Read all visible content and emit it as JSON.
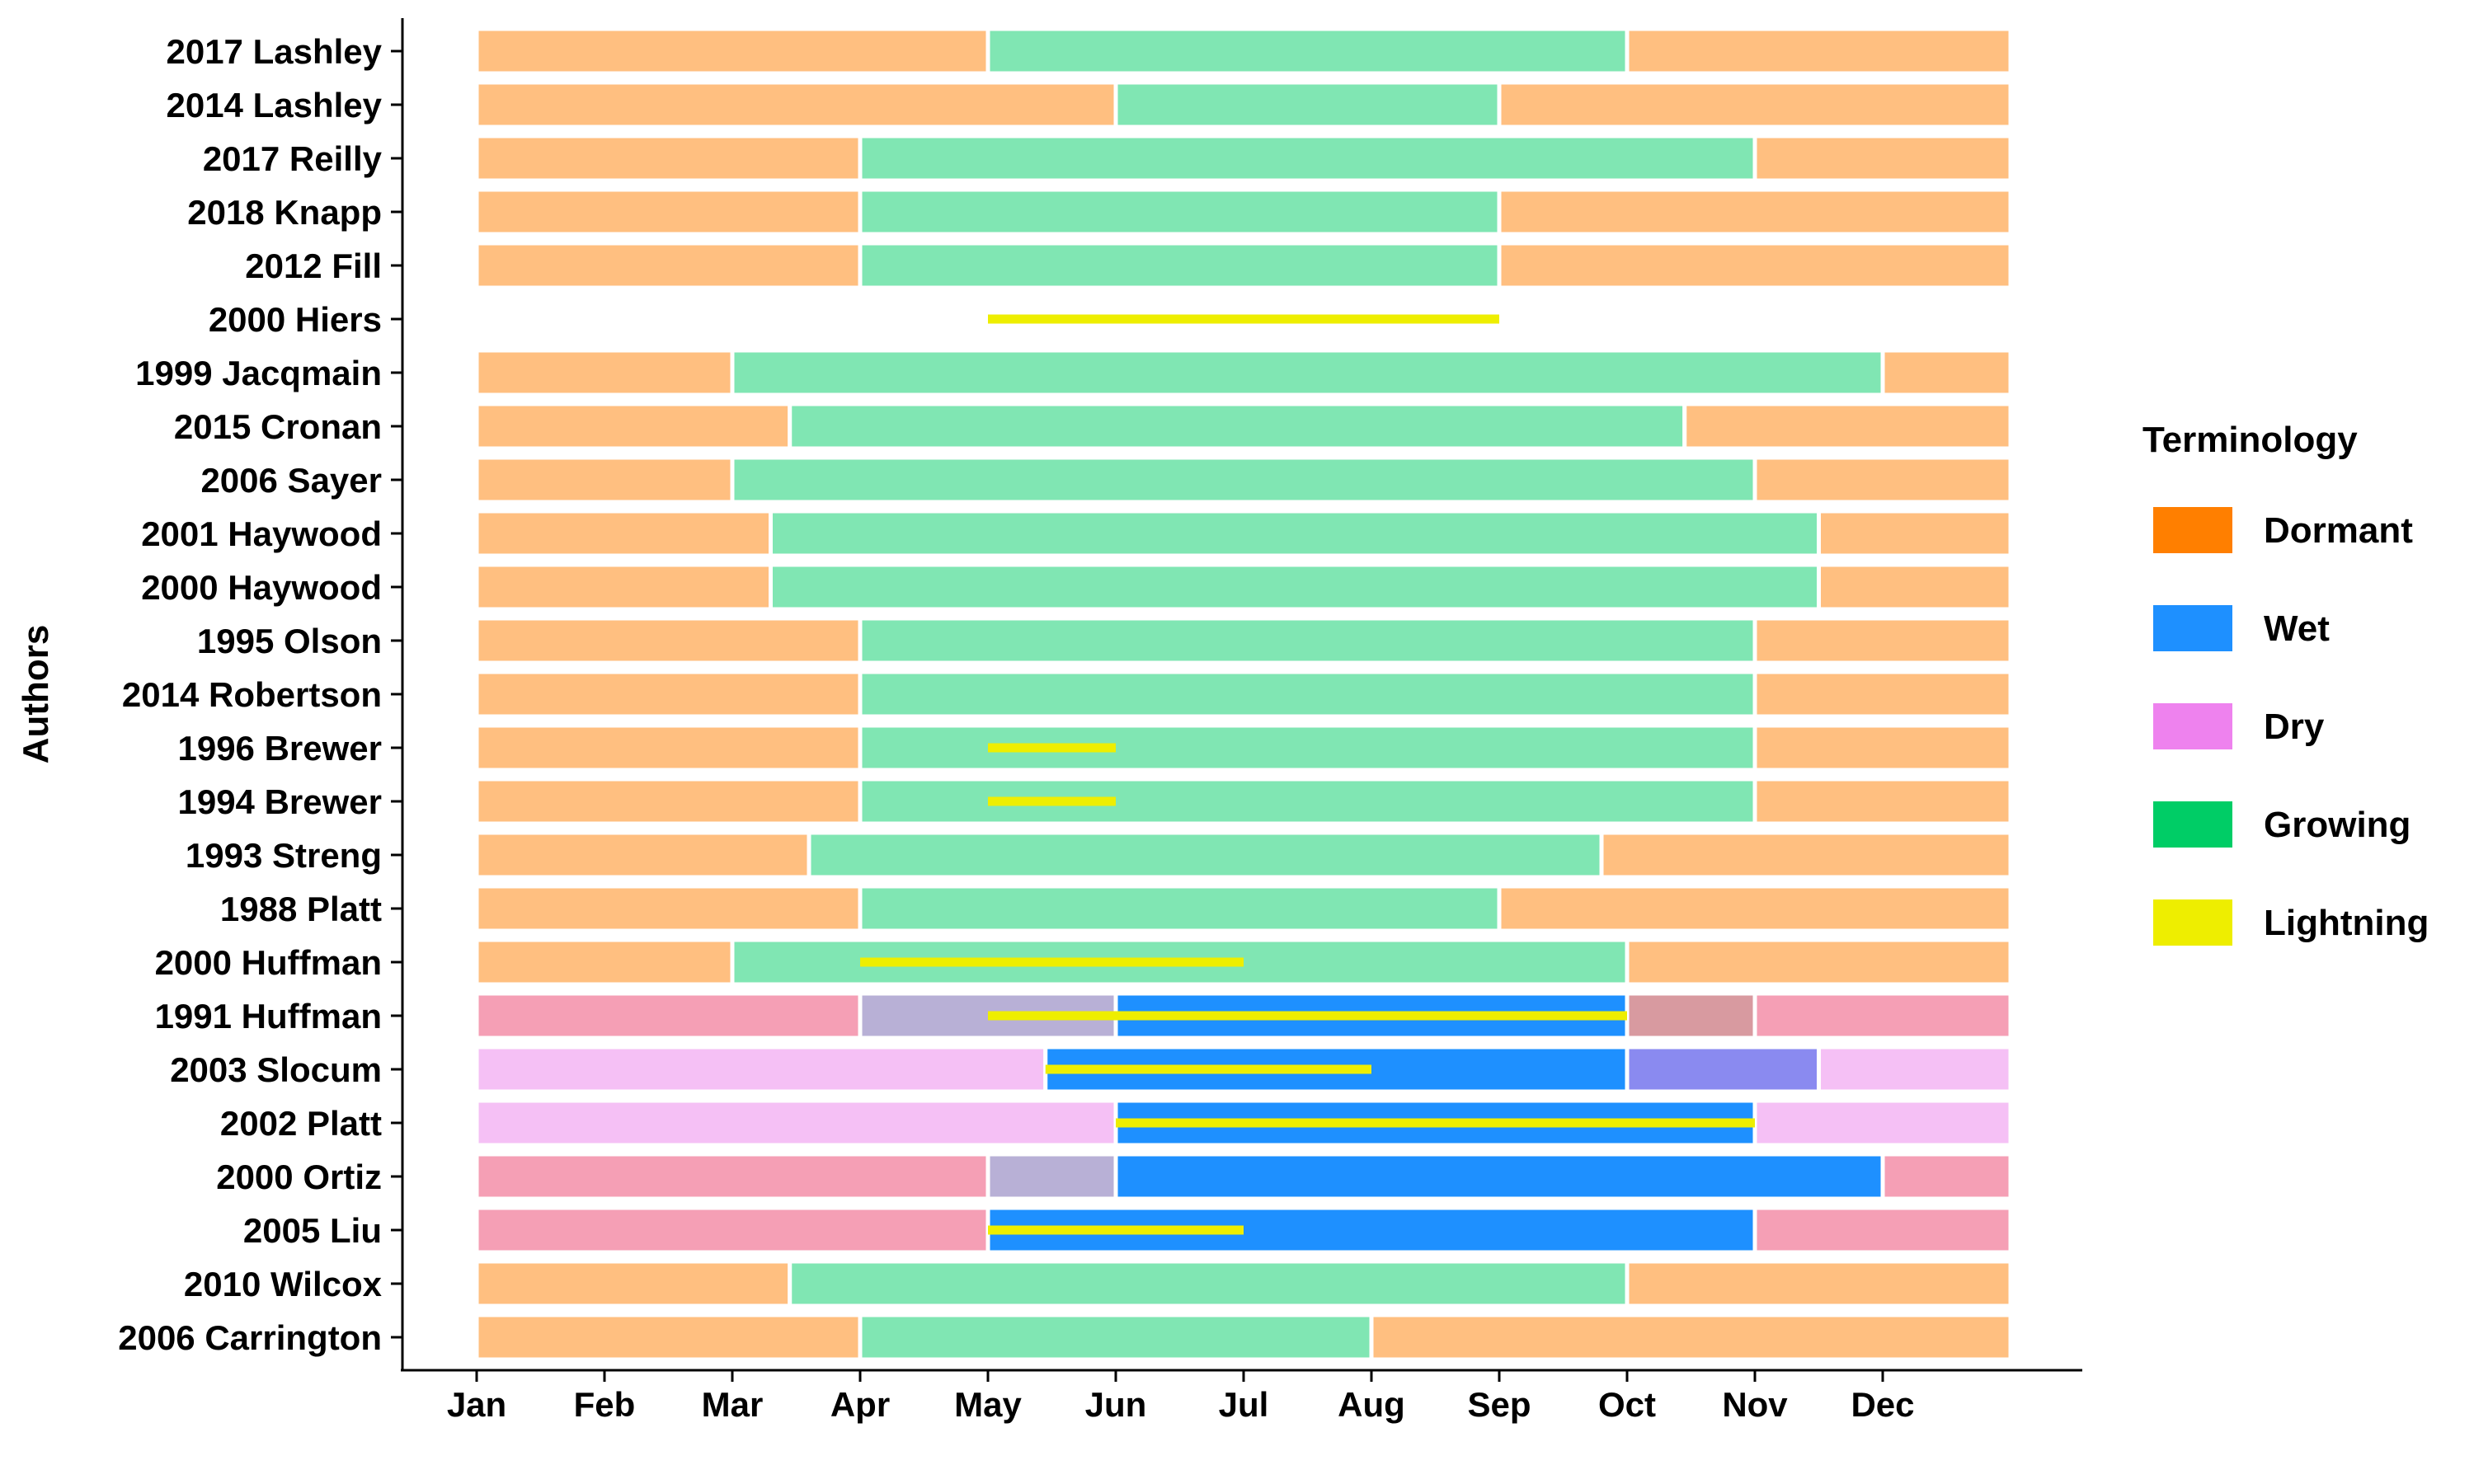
{
  "chart_data": {
    "type": "gantt",
    "ylabel": "Authors",
    "xlabel": "",
    "x_unit": "month (1 = Jan 1, 13 = end of Dec)",
    "xlim": [
      1,
      13
    ],
    "x_ticks": [
      "Jan",
      "Feb",
      "Mar",
      "Apr",
      "May",
      "Jun",
      "Jul",
      "Aug",
      "Sep",
      "Oct",
      "Nov",
      "Dec"
    ],
    "legend": {
      "title": "Terminology",
      "placement": "right",
      "entries": [
        {
          "name": "Dormant",
          "color": "#FF7F00"
        },
        {
          "name": "Wet",
          "color": "#1E90FF"
        },
        {
          "name": "Dry",
          "color": "#EE82EE"
        },
        {
          "name": "Growing",
          "color": "#00CD66"
        },
        {
          "name": "Lightning",
          "color": "#EEEE00"
        }
      ]
    },
    "rows": [
      {
        "label": "2017 Lashley",
        "bars": [
          {
            "s": 1,
            "e": 5,
            "c": "#FFBF80"
          },
          {
            "s": 5,
            "e": 10,
            "c": "#80E6B3"
          },
          {
            "s": 10,
            "e": 13,
            "c": "#FFBF80"
          }
        ],
        "lightning": []
      },
      {
        "label": "2014 Lashley",
        "bars": [
          {
            "s": 1,
            "e": 6,
            "c": "#FFBF80"
          },
          {
            "s": 6,
            "e": 9,
            "c": "#80E6B3"
          },
          {
            "s": 9,
            "e": 13,
            "c": "#FFBF80"
          }
        ],
        "lightning": []
      },
      {
        "label": "2017 Reilly",
        "bars": [
          {
            "s": 1,
            "e": 4,
            "c": "#FFBF80"
          },
          {
            "s": 4,
            "e": 11,
            "c": "#80E6B3"
          },
          {
            "s": 11,
            "e": 13,
            "c": "#FFBF80"
          }
        ],
        "lightning": []
      },
      {
        "label": "2018 Knapp",
        "bars": [
          {
            "s": 1,
            "e": 4,
            "c": "#FFBF80"
          },
          {
            "s": 4,
            "e": 9,
            "c": "#80E6B3"
          },
          {
            "s": 9,
            "e": 13,
            "c": "#FFBF80"
          }
        ],
        "lightning": []
      },
      {
        "label": "2012 Fill",
        "bars": [
          {
            "s": 1,
            "e": 4,
            "c": "#FFBF80"
          },
          {
            "s": 4,
            "e": 9,
            "c": "#80E6B3"
          },
          {
            "s": 9,
            "e": 13,
            "c": "#FFBF80"
          }
        ],
        "lightning": []
      },
      {
        "label": "2000 Hiers",
        "bars": [],
        "lightning": [
          [
            5,
            9
          ]
        ]
      },
      {
        "label": "1999 Jacqmain",
        "bars": [
          {
            "s": 1,
            "e": 3,
            "c": "#FFBF80"
          },
          {
            "s": 3,
            "e": 12,
            "c": "#80E6B3"
          },
          {
            "s": 12,
            "e": 13,
            "c": "#FFBF80"
          }
        ],
        "lightning": []
      },
      {
        "label": "2015 Cronan",
        "bars": [
          {
            "s": 1,
            "e": 3.45,
            "c": "#FFBF80"
          },
          {
            "s": 3.45,
            "e": 10.45,
            "c": "#80E6B3"
          },
          {
            "s": 10.45,
            "e": 13,
            "c": "#FFBF80"
          }
        ],
        "lightning": []
      },
      {
        "label": "2006 Sayer",
        "bars": [
          {
            "s": 1,
            "e": 3,
            "c": "#FFBF80"
          },
          {
            "s": 3,
            "e": 11,
            "c": "#80E6B3"
          },
          {
            "s": 11,
            "e": 13,
            "c": "#FFBF80"
          }
        ],
        "lightning": []
      },
      {
        "label": "2001 Haywood",
        "bars": [
          {
            "s": 1,
            "e": 3.3,
            "c": "#FFBF80"
          },
          {
            "s": 3.3,
            "e": 11.5,
            "c": "#80E6B3"
          },
          {
            "s": 11.5,
            "e": 13,
            "c": "#FFBF80"
          }
        ],
        "lightning": []
      },
      {
        "label": "2000 Haywood",
        "bars": [
          {
            "s": 1,
            "e": 3.3,
            "c": "#FFBF80"
          },
          {
            "s": 3.3,
            "e": 11.5,
            "c": "#80E6B3"
          },
          {
            "s": 11.5,
            "e": 13,
            "c": "#FFBF80"
          }
        ],
        "lightning": []
      },
      {
        "label": "1995 Olson",
        "bars": [
          {
            "s": 1,
            "e": 4,
            "c": "#FFBF80"
          },
          {
            "s": 4,
            "e": 11,
            "c": "#80E6B3"
          },
          {
            "s": 11,
            "e": 13,
            "c": "#FFBF80"
          }
        ],
        "lightning": []
      },
      {
        "label": "2014 Robertson",
        "bars": [
          {
            "s": 1,
            "e": 4,
            "c": "#FFBF80"
          },
          {
            "s": 4,
            "e": 11,
            "c": "#80E6B3"
          },
          {
            "s": 11,
            "e": 13,
            "c": "#FFBF80"
          }
        ],
        "lightning": []
      },
      {
        "label": "1996 Brewer",
        "bars": [
          {
            "s": 1,
            "e": 4,
            "c": "#FFBF80"
          },
          {
            "s": 4,
            "e": 11,
            "c": "#80E6B3"
          },
          {
            "s": 11,
            "e": 13,
            "c": "#FFBF80"
          }
        ],
        "lightning": [
          [
            5,
            6
          ]
        ]
      },
      {
        "label": "1994 Brewer",
        "bars": [
          {
            "s": 1,
            "e": 4,
            "c": "#FFBF80"
          },
          {
            "s": 4,
            "e": 11,
            "c": "#80E6B3"
          },
          {
            "s": 11,
            "e": 13,
            "c": "#FFBF80"
          }
        ],
        "lightning": [
          [
            5,
            6
          ]
        ]
      },
      {
        "label": "1993 Streng",
        "bars": [
          {
            "s": 1,
            "e": 3.6,
            "c": "#FFBF80"
          },
          {
            "s": 3.6,
            "e": 9.8,
            "c": "#80E6B3"
          },
          {
            "s": 9.8,
            "e": 13,
            "c": "#FFBF80"
          }
        ],
        "lightning": []
      },
      {
        "label": "1988 Platt",
        "bars": [
          {
            "s": 1,
            "e": 4,
            "c": "#FFBF80"
          },
          {
            "s": 4,
            "e": 9,
            "c": "#80E6B3"
          },
          {
            "s": 9,
            "e": 13,
            "c": "#FFBF80"
          }
        ],
        "lightning": []
      },
      {
        "label": "2000 Huffman",
        "bars": [
          {
            "s": 1,
            "e": 3,
            "c": "#FFBF80"
          },
          {
            "s": 3,
            "e": 10,
            "c": "#80E6B3"
          },
          {
            "s": 10,
            "e": 13,
            "c": "#FFBF80"
          }
        ],
        "lightning": [
          [
            4,
            7
          ]
        ]
      },
      {
        "label": "1991 Huffman",
        "bars": [
          {
            "s": 1,
            "e": 4,
            "c": "#F59FB5"
          },
          {
            "s": 4,
            "e": 6,
            "c": "#B8B0D6"
          },
          {
            "s": 6,
            "e": 10,
            "c": "#1E90FF"
          },
          {
            "s": 10,
            "e": 11,
            "c": "#D89AA0"
          },
          {
            "s": 11,
            "e": 13,
            "c": "#F59FB5"
          }
        ],
        "lightning": [
          [
            5,
            10
          ]
        ]
      },
      {
        "label": "2003 Slocum",
        "bars": [
          {
            "s": 1,
            "e": 5.45,
            "c": "#F5C0F5"
          },
          {
            "s": 5.45,
            "e": 10,
            "c": "#1E90FF"
          },
          {
            "s": 10,
            "e": 11.5,
            "c": "#8A8AF0"
          },
          {
            "s": 11.5,
            "e": 13,
            "c": "#F5C0F5"
          }
        ],
        "lightning": [
          [
            5.45,
            8
          ]
        ]
      },
      {
        "label": "2002 Platt",
        "bars": [
          {
            "s": 1,
            "e": 6,
            "c": "#F5C0F5"
          },
          {
            "s": 6,
            "e": 11,
            "c": "#1E90FF"
          },
          {
            "s": 11,
            "e": 13,
            "c": "#F5C0F5"
          }
        ],
        "lightning": [
          [
            6,
            11
          ]
        ]
      },
      {
        "label": "2000 Ortiz",
        "bars": [
          {
            "s": 1,
            "e": 5,
            "c": "#F59FB5"
          },
          {
            "s": 5,
            "e": 6,
            "c": "#B8B0D6"
          },
          {
            "s": 6,
            "e": 12,
            "c": "#1E90FF"
          },
          {
            "s": 12,
            "e": 13,
            "c": "#F59FB5"
          }
        ],
        "lightning": []
      },
      {
        "label": "2005 Liu",
        "bars": [
          {
            "s": 1,
            "e": 5,
            "c": "#F59FB5"
          },
          {
            "s": 5,
            "e": 11,
            "c": "#1E90FF"
          },
          {
            "s": 11,
            "e": 13,
            "c": "#F59FB5"
          }
        ],
        "lightning": [
          [
            5,
            7
          ]
        ]
      },
      {
        "label": "2010 Wilcox",
        "bars": [
          {
            "s": 1,
            "e": 3.45,
            "c": "#FFBF80"
          },
          {
            "s": 3.45,
            "e": 10,
            "c": "#80E6B3"
          },
          {
            "s": 10,
            "e": 13,
            "c": "#FFBF80"
          }
        ],
        "lightning": []
      },
      {
        "label": "2006 Carrington",
        "bars": [
          {
            "s": 1,
            "e": 4,
            "c": "#FFBF80"
          },
          {
            "s": 4,
            "e": 8,
            "c": "#80E6B3"
          },
          {
            "s": 8,
            "e": 13,
            "c": "#FFBF80"
          }
        ],
        "lightning": []
      }
    ]
  }
}
